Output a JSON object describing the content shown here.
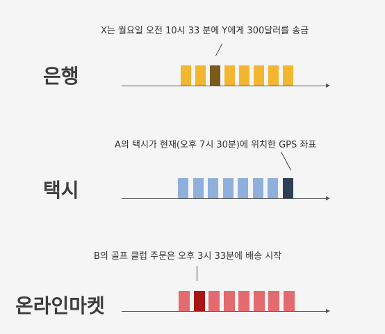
{
  "rows": [
    {
      "label": "은행",
      "annotation": "X는 월요일 오전 10시 33 분에 Y에게 300달러를 송금",
      "color": "#f2b630",
      "highlight_color": "#7a5a1d",
      "block_count": 8,
      "highlight_index": 2
    },
    {
      "label": "택시",
      "annotation": "A의 택시가 현재(오후 7시 30분)에 위치한 GPS 좌표",
      "color": "#8fb0dc",
      "highlight_color": "#2f3f55",
      "block_count": 8,
      "highlight_index": 7
    },
    {
      "label": "온라인마켓",
      "annotation": "B의 골프 클럽 주문은 오후 3시 33분에 배송 시작",
      "color": "#e36a6f",
      "highlight_color": "#a81616",
      "block_count": 8,
      "highlight_index": 1
    }
  ]
}
